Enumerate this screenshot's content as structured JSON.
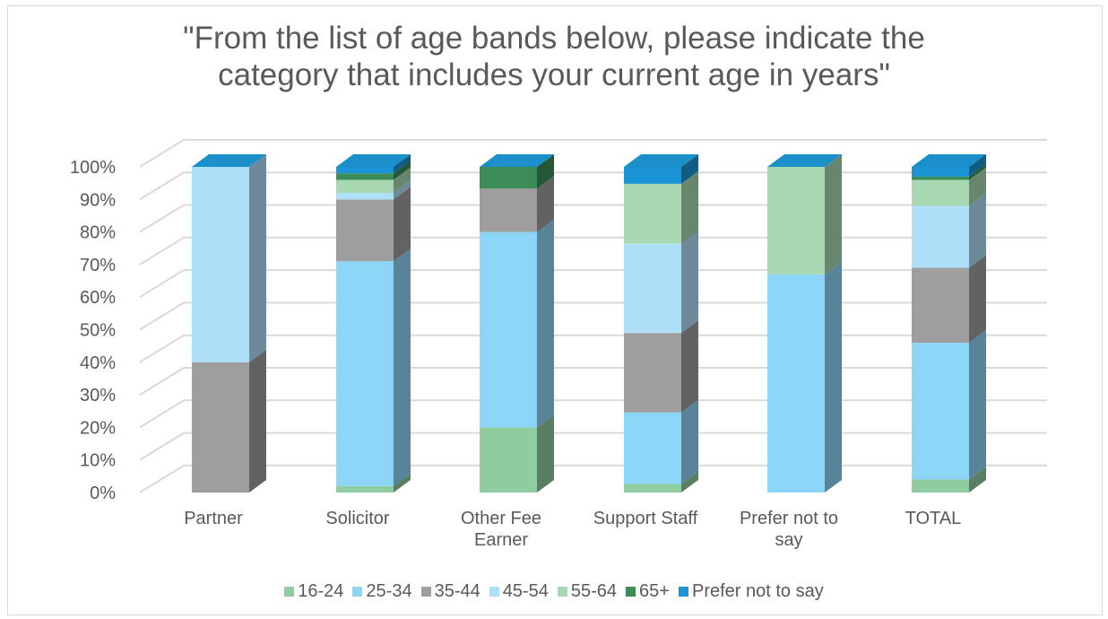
{
  "chart_data": {
    "type": "bar",
    "stacked": true,
    "three_d": true,
    "title_lines": [
      "\"From the list of age bands below, please indicate the",
      "category that includes your current age in years\""
    ],
    "categories": [
      "Partner",
      "Solicitor",
      "Other Fee Earner",
      "Support Staff",
      "Prefer not to say",
      "TOTAL"
    ],
    "category_label_lines": [
      [
        "Partner"
      ],
      [
        "Solicitor"
      ],
      [
        "Other Fee",
        "Earner"
      ],
      [
        "Support Staff"
      ],
      [
        "Prefer not to",
        "say"
      ],
      [
        "TOTAL"
      ]
    ],
    "y_ticks": [
      "0%",
      "10%",
      "20%",
      "30%",
      "40%",
      "50%",
      "60%",
      "70%",
      "80%",
      "90%",
      "100%"
    ],
    "ylim": [
      0,
      100
    ],
    "grid": true,
    "legend_position": "bottom",
    "series": [
      {
        "name": "16-24",
        "color": "#8fcc9f",
        "values": [
          0,
          2,
          20,
          2.6,
          0,
          4
        ]
      },
      {
        "name": "25-34",
        "color": "#8dd5f7",
        "values": [
          0,
          69,
          60,
          22,
          67,
          42
        ]
      },
      {
        "name": "35-44",
        "color": "#9e9e9e",
        "values": [
          40,
          19,
          13.3,
          24.4,
          0,
          23
        ]
      },
      {
        "name": "45-54",
        "color": "#aedff9",
        "values": [
          60,
          2,
          0,
          27.4,
          0,
          19
        ]
      },
      {
        "name": "55-64",
        "color": "#a8d8b2",
        "values": [
          0,
          4,
          0,
          18.4,
          33,
          8
        ]
      },
      {
        "name": "65+",
        "color": "#3c8c58",
        "values": [
          0,
          2,
          6.7,
          0,
          0,
          1
        ]
      },
      {
        "name": "Prefer not to say",
        "color": "#1a94d4",
        "values": [
          0,
          2,
          0,
          5.2,
          0,
          3
        ]
      }
    ]
  }
}
